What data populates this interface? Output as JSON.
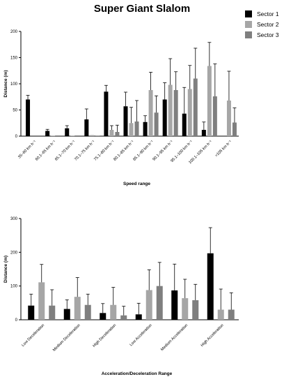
{
  "title": "Super Giant Slalom",
  "colors": {
    "sector1": "#000000",
    "sector2": "#a6a6a6",
    "sector3": "#7f7f7f"
  },
  "chart_data": [
    {
      "type": "bar",
      "title": "Super Giant Slalom",
      "xlabel": "Speed range",
      "ylabel": "Distance (m)",
      "ylim": [
        0,
        200
      ],
      "yticks": [
        0,
        50,
        100,
        150,
        200
      ],
      "legend": "top-right",
      "error_bars": true,
      "categories": [
        "35–60 km h⁻¹",
        "60.1–65 km h⁻¹",
        "65.1–70 km h⁻¹",
        "70.1–75 km h⁻¹",
        "75.1–80 km h⁻¹",
        "80.1–85 km h⁻¹",
        "85.1–90 km h⁻¹",
        "90.1–95 km h⁻¹",
        "95.1–100 km h⁻¹",
        "100.1–105 km h⁻¹",
        ">105 km h⁻¹"
      ],
      "series": [
        {
          "name": "Sector 1",
          "values": [
            70,
            10,
            15,
            32,
            85,
            57,
            27,
            70,
            43,
            12,
            0
          ],
          "errors": [
            8,
            3,
            5,
            20,
            12,
            27,
            12,
            32,
            50,
            15,
            0
          ]
        },
        {
          "name": "Sector 2",
          "values": [
            0,
            1,
            1,
            2,
            12,
            25,
            88,
            98,
            90,
            134,
            68
          ],
          "errors": [
            0,
            0,
            0,
            0,
            8,
            30,
            34,
            50,
            45,
            45,
            56
          ]
        },
        {
          "name": "Sector 3",
          "values": [
            0,
            0,
            0,
            1,
            8,
            28,
            45,
            88,
            110,
            76,
            26
          ],
          "errors": [
            0,
            0,
            0,
            0,
            13,
            40,
            32,
            35,
            58,
            62,
            28
          ]
        }
      ]
    },
    {
      "type": "bar",
      "xlabel": "Acceleration/Deceleration Range",
      "ylabel": "Distance (m)",
      "ylim": [
        0,
        300
      ],
      "yticks": [
        0,
        100,
        200,
        300
      ],
      "error_bars": true,
      "categories": [
        "Low Deceleration",
        "Medium Deceleration",
        "High Deceleration",
        "Low Acceleration",
        "Medium Acceleration",
        "High Acceleration"
      ],
      "series": [
        {
          "name": "Sector 1",
          "values": [
            42,
            32,
            20,
            16,
            87,
            197
          ],
          "errors": [
            34,
            27,
            28,
            33,
            78,
            76
          ]
        },
        {
          "name": "Sector 2",
          "values": [
            111,
            68,
            44,
            88,
            64,
            30
          ],
          "errors": [
            53,
            57,
            52,
            60,
            56,
            61
          ]
        },
        {
          "name": "Sector 3",
          "values": [
            42,
            44,
            13,
            100,
            58,
            30
          ],
          "errors": [
            47,
            32,
            27,
            70,
            47,
            50
          ]
        }
      ]
    }
  ]
}
